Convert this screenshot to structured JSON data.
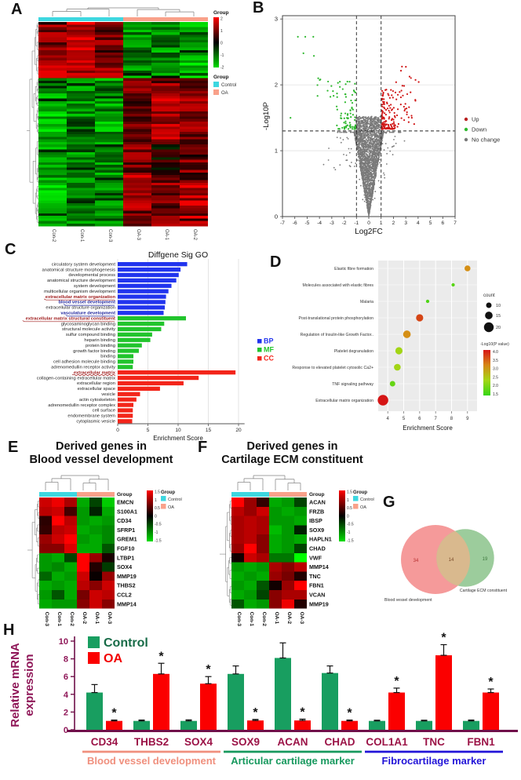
{
  "figure": {
    "panel_labels": {
      "a": "A",
      "b": "B",
      "c": "C",
      "d": "D",
      "e": "E",
      "f": "F",
      "g": "G",
      "h": "H"
    }
  },
  "colors": {
    "control_annotation": "#3dd7e0",
    "oa_annotation": "#f9a18a",
    "up_red": "#b92020",
    "down_green": "#2eb82e",
    "nochange_gray": "#7a7a7a",
    "bp_blue": "#2134ee",
    "mf_green": "#21c42c",
    "cc_red": "#f3251a",
    "control_bar_green": "#189e60",
    "oa_bar_red": "#fb0000",
    "axis_magenta": "#8f1758",
    "gene_label": "#9b1347",
    "baseline": "#70104a",
    "group_salmon": "#f0907e",
    "group_green": "#17995e",
    "group_blue": "#2214d8",
    "venn_pink": "#f59a9a",
    "venn_green": "#9ccc9c",
    "venn_overlap": "#d9b98e"
  },
  "chart_data": [
    {
      "id": "A",
      "type": "heatmap",
      "columns": [
        "Con-2",
        "Con-1",
        "Con-3",
        "OA-3",
        "OA-1",
        "OA-2"
      ],
      "column_groups": [
        "Control",
        "Control",
        "Control",
        "OA",
        "OA",
        "OA"
      ],
      "colorbar": {
        "title": "Group",
        "ticks": [
          2,
          1,
          0,
          -1,
          -2
        ],
        "max": 2,
        "min": -2
      },
      "legend": {
        "title": "Group",
        "items": [
          {
            "label": "Control",
            "color": "#3dd7e0"
          },
          {
            "label": "OA",
            "color": "#f9a18a"
          }
        ]
      },
      "n_rows": 80,
      "seed": 7,
      "row_blocks": [
        {
          "rows": 22,
          "col_ranges": [
            [
              0.7,
              1.9
            ],
            [
              0.8,
              2.0
            ],
            [
              0.5,
              1.8
            ],
            [
              -1.7,
              -0.5
            ],
            [
              -1.8,
              -0.2
            ],
            [
              -2.0,
              -0.8
            ]
          ]
        },
        {
          "rows": 26,
          "col_ranges": [
            [
              -1.9,
              -0.7
            ],
            [
              -1.6,
              -0.4
            ],
            [
              -1.8,
              -0.6
            ],
            [
              0.2,
              1.5
            ],
            [
              0.7,
              1.9
            ],
            [
              0.3,
              1.7
            ]
          ]
        },
        {
          "rows": 13,
          "col_ranges": [
            [
              -1.8,
              -0.8
            ],
            [
              -1.6,
              -0.5
            ],
            [
              -1.7,
              -0.6
            ],
            [
              1.1,
              2.0
            ],
            [
              -0.5,
              1.0
            ],
            [
              0.2,
              1.6
            ]
          ]
        },
        {
          "rows": 19,
          "col_ranges": [
            [
              -1.9,
              -0.8
            ],
            [
              -1.7,
              -0.6
            ],
            [
              -1.6,
              -0.5
            ],
            [
              0.5,
              1.8
            ],
            [
              0.2,
              1.6
            ],
            [
              0.7,
              2.0
            ]
          ]
        }
      ]
    },
    {
      "id": "B",
      "type": "scatter",
      "xlabel": "Log2FC",
      "ylabel": "-Log10P",
      "xlim": [
        -7,
        7
      ],
      "ylim": [
        0,
        3.05
      ],
      "xticks": [
        -7,
        -6,
        -5,
        -4,
        -3,
        -2,
        -1,
        0,
        1,
        2,
        3,
        4,
        5,
        6,
        7
      ],
      "yticks": [
        0,
        1,
        2,
        3
      ],
      "threshold_x": [
        -1,
        1
      ],
      "threshold_y": 1.3,
      "legend": [
        {
          "label": "Up",
          "color": "#b92020"
        },
        {
          "label": "Down",
          "color": "#2eb82e"
        },
        {
          "label": "No change",
          "color": "#7a7a7a"
        }
      ],
      "point_counts": {
        "no_change": 2500,
        "down": 95,
        "up": 175
      },
      "seed": 11
    },
    {
      "id": "C",
      "type": "bar",
      "title": "Diffgene Sig GO",
      "xlabel": "Enrichment Score",
      "xticks": [
        0,
        5,
        10,
        15,
        20
      ],
      "xlim": [
        0,
        21
      ],
      "legend": [
        {
          "label": "BP",
          "color": "#2134ee"
        },
        {
          "label": "MF",
          "color": "#21c42c"
        },
        {
          "label": "CC",
          "color": "#f3251a"
        }
      ],
      "bars": [
        {
          "term": "circulatory system development",
          "group": "BP",
          "value": 11.5
        },
        {
          "term": "anatomical structure morphogenesis",
          "group": "BP",
          "value": 10.4
        },
        {
          "term": "developmental process",
          "group": "BP",
          "value": 10.1
        },
        {
          "term": "anatomical structure development",
          "group": "BP",
          "value": 9.7
        },
        {
          "term": "system development",
          "group": "BP",
          "value": 8.9
        },
        {
          "term": "multicellular organism development",
          "group": "BP",
          "value": 8.4
        },
        {
          "term": "extracellular matrix organization",
          "group": "BP",
          "value": 8.0,
          "highlight": "red"
        },
        {
          "term": "blood vessel development",
          "group": "BP",
          "value": 7.9,
          "highlight": "blue"
        },
        {
          "term": "extracellular structure organization",
          "group": "BP",
          "value": 7.8
        },
        {
          "term": "vasculature development",
          "group": "BP",
          "value": 7.6,
          "highlight": "blue"
        },
        {
          "term": "extracellular matrix structural constituent",
          "group": "MF",
          "value": 11.3,
          "highlight": "red"
        },
        {
          "term": "glycosaminoglycan binding",
          "group": "MF",
          "value": 7.7
        },
        {
          "term": "structural molecule activity",
          "group": "MF",
          "value": 7.2
        },
        {
          "term": "sulfur compound binding",
          "group": "MF",
          "value": 5.7
        },
        {
          "term": "heparin binding",
          "group": "MF",
          "value": 5.4
        },
        {
          "term": "protein binding",
          "group": "MF",
          "value": 4.0
        },
        {
          "term": "growth factor binding",
          "group": "MF",
          "value": 3.5
        },
        {
          "term": "binding",
          "group": "MF",
          "value": 2.6
        },
        {
          "term": "cell adhesion molecule binding",
          "group": "MF",
          "value": 2.6
        },
        {
          "term": "adrenomedullin receptor activity",
          "group": "MF",
          "value": 2.5
        },
        {
          "term": "extracellular matrix",
          "group": "CC",
          "value": 19.5,
          "highlight": "red"
        },
        {
          "term": "collagen-containing extracellular matrix",
          "group": "CC",
          "value": 13.4
        },
        {
          "term": "extracellular region",
          "group": "CC",
          "value": 10.9
        },
        {
          "term": "extracellular space",
          "group": "CC",
          "value": 7.0
        },
        {
          "term": "vesicle",
          "group": "CC",
          "value": 3.7
        },
        {
          "term": "actin cytoskeleton",
          "group": "CC",
          "value": 3.1
        },
        {
          "term": "adrenomedullin receptor complex",
          "group": "CC",
          "value": 2.6
        },
        {
          "term": "cell surface",
          "group": "CC",
          "value": 2.5
        },
        {
          "term": "endomembrane system",
          "group": "CC",
          "value": 2.5
        },
        {
          "term": "cytoplasmic vesicle",
          "group": "CC",
          "value": 2.4
        }
      ]
    },
    {
      "id": "D",
      "type": "dot",
      "xlabel": "Enrichment Score",
      "xlim": [
        3.4,
        9.6
      ],
      "xticks": [
        4,
        5,
        6,
        7,
        8,
        9
      ],
      "size_legend": {
        "title": "count",
        "items": [
          10,
          15,
          20
        ]
      },
      "color_legend": {
        "title": "-Log10(P value)",
        "ticks": [
          "4.0",
          "3.5",
          "3.0",
          "2.5",
          "2.0",
          "1.5"
        ],
        "min": 1.5,
        "max": 4.4
      },
      "points": [
        {
          "label": "Elastic fibre formation",
          "x": 9.0,
          "count": 11,
          "logp": 3.4
        },
        {
          "label": "Molecules associated with elastic fibres",
          "x": 8.1,
          "count": 5,
          "logp": 1.8
        },
        {
          "label": "Malaria",
          "x": 6.5,
          "count": 5,
          "logp": 1.7
        },
        {
          "label": "Post-translational protein phosphorylation",
          "x": 6.0,
          "count": 14,
          "logp": 4.0
        },
        {
          "label": "Regulation of Insulin-like Growth Factor..",
          "x": 5.2,
          "count": 15,
          "logp": 3.4
        },
        {
          "label": "Platelet degranulation",
          "x": 4.7,
          "count": 14,
          "logp": 2.4
        },
        {
          "label": "Response to elevated platelet cytosolic Ca2+",
          "x": 4.6,
          "count": 13,
          "logp": 2.4
        },
        {
          "label": "TNF signaling pathway",
          "x": 4.3,
          "count": 10,
          "logp": 1.9
        },
        {
          "label": "Extracellular matrix organization",
          "x": 3.7,
          "count": 22,
          "logp": 4.4
        }
      ]
    },
    {
      "id": "E",
      "type": "heatmap",
      "title_line1": "Derived genes in",
      "title_line2": "Blood vessel development",
      "columns": [
        "Con-3",
        "Con-1",
        "Con-2",
        "OA-2",
        "OA-1",
        "OA-3"
      ],
      "column_groups": [
        "Control",
        "Control",
        "Control",
        "OA",
        "OA",
        "OA"
      ],
      "rows": [
        "EMCN",
        "S100A1",
        "CD34",
        "SFRP1",
        "GREM1",
        "FGF10",
        "LTBP1",
        "SOX4",
        "MMP19",
        "THBS2",
        "CCL2",
        "MMP14"
      ],
      "values": [
        [
          1.2,
          1.4,
          1.0,
          -1.0,
          -0.4,
          -1.2
        ],
        [
          1.1,
          1.2,
          0.4,
          -0.9,
          -0.2,
          -1.0
        ],
        [
          0.25,
          1.5,
          1.1,
          -0.9,
          -1.0,
          -0.9
        ],
        [
          0.3,
          1.1,
          1.2,
          -1.0,
          -0.9,
          -0.8
        ],
        [
          0.9,
          1.2,
          1.5,
          -0.9,
          -1.0,
          -0.8
        ],
        [
          0.8,
          0.8,
          1.3,
          -1.0,
          -1.0,
          -0.5
        ],
        [
          -0.9,
          -1.0,
          -0.4,
          1.5,
          0.9,
          0.15
        ],
        [
          -0.9,
          -0.8,
          -1.0,
          1.5,
          0.2,
          -0.35
        ],
        [
          -0.6,
          -1.0,
          -0.9,
          1.2,
          0.05,
          0.9
        ],
        [
          -1.0,
          -0.9,
          -1.0,
          1.1,
          0.8,
          1.2
        ],
        [
          -0.9,
          -0.5,
          -1.0,
          0.7,
          1.2,
          1.1
        ],
        [
          -1.0,
          -0.9,
          -0.9,
          0.8,
          1.2,
          0.8
        ]
      ],
      "colorbar": {
        "ticks": [
          1.5,
          1,
          0.5,
          0,
          -0.5,
          -1,
          -1.5
        ],
        "max": 1.5,
        "min": -1.5
      },
      "legend": {
        "title": "Group",
        "annotation_label": "Group",
        "items": [
          {
            "label": "Control",
            "color": "#3dd7e0"
          },
          {
            "label": "OA",
            "color": "#f9a18a"
          }
        ]
      }
    },
    {
      "id": "F",
      "type": "heatmap",
      "title_line1": "Derived genes in",
      "title_line2": "Cartilage ECM constituent",
      "columns": [
        "Con-3",
        "Con-1",
        "Con-2",
        "OA-1",
        "OA-2",
        "OA-3"
      ],
      "column_groups": [
        "Control",
        "Control",
        "Control",
        "OA",
        "OA",
        "OA"
      ],
      "rows": [
        "ACAN",
        "FRZB",
        "IBSP",
        "SOX9",
        "HAPLN1",
        "CHAD",
        "VWF",
        "MMP14",
        "TNC",
        "FBN1",
        "VCAN",
        "MMP19"
      ],
      "values": [
        [
          1.5,
          0.9,
          0.3,
          -1.0,
          -0.9,
          -0.4
        ],
        [
          1.1,
          0.9,
          1.2,
          -0.9,
          -1.0,
          -0.9
        ],
        [
          1.0,
          1.1,
          1.0,
          -0.9,
          -0.9,
          -1.0
        ],
        [
          1.0,
          1.1,
          1.0,
          -1.1,
          -0.9,
          -0.2
        ],
        [
          1.0,
          1.1,
          0.8,
          -1.0,
          -0.9,
          -1.0
        ],
        [
          0.9,
          1.5,
          0.8,
          -1.0,
          -0.9,
          -0.4
        ],
        [
          0.1,
          1.2,
          1.0,
          -0.7,
          -0.7,
          -1.5
        ],
        [
          -0.9,
          -1.0,
          -0.9,
          1.0,
          0.8,
          1.1
        ],
        [
          -1.0,
          -0.9,
          -1.0,
          0.9,
          0.7,
          0.2
        ],
        [
          -0.9,
          -1.0,
          -0.5,
          0.1,
          0.9,
          1.5
        ],
        [
          -1.0,
          -0.9,
          -0.4,
          0.8,
          1.0,
          1.0
        ],
        [
          -0.5,
          -1.0,
          -0.9,
          0.8,
          1.4,
          0.2
        ]
      ],
      "colorbar": {
        "ticks": [
          1.5,
          1,
          0.5,
          0,
          -0.5,
          -1,
          -1.5
        ],
        "max": 1.5,
        "min": -1.5
      },
      "legend": {
        "title": "Group",
        "annotation_label": "Group",
        "items": [
          {
            "label": "Control",
            "color": "#3dd7e0"
          },
          {
            "label": "OA",
            "color": "#f9a18a"
          }
        ]
      }
    },
    {
      "id": "G",
      "type": "venn",
      "sets": [
        {
          "label": "Blood vessel development",
          "unique_count": 34,
          "color": "#f59a9a"
        },
        {
          "label": "Cartilage ECM constituent",
          "unique_count": 19,
          "color": "#9ccc9c"
        }
      ],
      "overlap_count": 14
    },
    {
      "id": "H",
      "type": "bar",
      "ylabel_line1": "Relative mRNA",
      "ylabel_line2": "expression",
      "ylim": [
        0,
        10
      ],
      "yticks": [
        0,
        2,
        4,
        6,
        8,
        10
      ],
      "legend": [
        {
          "label": "Control",
          "color": "#189e60"
        },
        {
          "label": "OA",
          "color": "#fb0000"
        }
      ],
      "categories": [
        "CD34",
        "THBS2",
        "SOX4",
        "SOX9",
        "ACAN",
        "CHAD",
        "COL1A1",
        "TNC",
        "FBN1"
      ],
      "series": [
        {
          "name": "Control",
          "color": "#189e60",
          "values": [
            4.2,
            1.0,
            1.0,
            6.3,
            8.1,
            6.4,
            1.0,
            1.0,
            1.0
          ],
          "errors": [
            0.9,
            0.1,
            0.12,
            0.9,
            1.7,
            0.8,
            0.08,
            0.08,
            0.1
          ]
        },
        {
          "name": "OA",
          "color": "#fb0000",
          "values": [
            1.0,
            6.3,
            5.2,
            1.05,
            1.05,
            1.0,
            4.2,
            8.4,
            4.2
          ],
          "errors": [
            0.1,
            1.2,
            0.8,
            0.12,
            0.15,
            0.1,
            0.5,
            1.2,
            0.4
          ]
        }
      ],
      "significant_on": [
        "OA",
        "OA",
        "OA",
        "OA",
        "OA",
        "OA",
        "OA",
        "OA",
        "OA"
      ],
      "sig_symbol": "*",
      "gene_groups": [
        {
          "label": "Blood vessel development",
          "genes": [
            "CD34",
            "THBS2",
            "SOX4"
          ],
          "color": "#f0907e"
        },
        {
          "label": "Articular cartilage marker",
          "genes": [
            "SOX9",
            "ACAN",
            "CHAD"
          ],
          "color": "#17995e"
        },
        {
          "label": "Fibrocartilage marker",
          "genes": [
            "COL1A1",
            "TNC",
            "FBN1"
          ],
          "color": "#2214d8"
        }
      ]
    }
  ]
}
